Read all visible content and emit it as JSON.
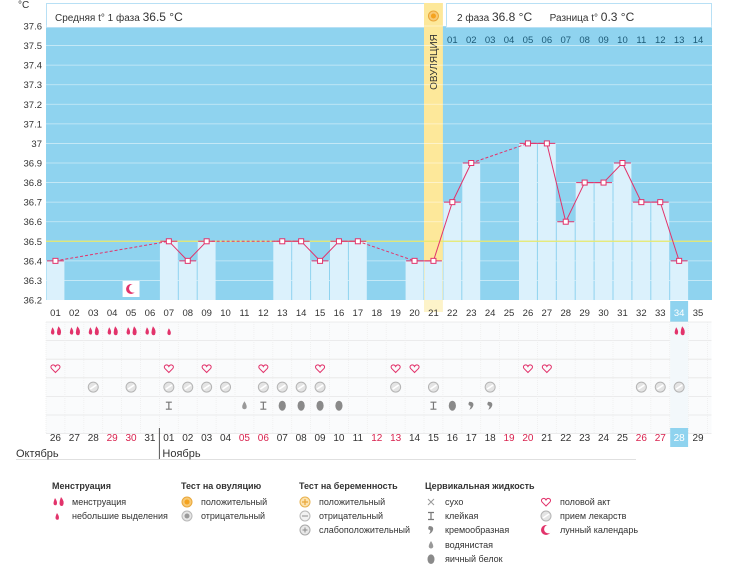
{
  "chart_data": {
    "type": "bar",
    "unit_label": "°C",
    "phase1_label": "Средняя t° 1 фаза",
    "phase1_value": "36.5 °C",
    "phase2_label": "2 фаза",
    "phase2_value": "36.8 °C",
    "diff_label": "Разница t°",
    "diff_value": "0.3 °C",
    "ovulation_label": "ОВУЛЯЦИЯ",
    "ovulation_day": 21,
    "coverline": 36.5,
    "ylim": [
      36.2,
      37.6
    ],
    "y_ticks": [
      "36.2",
      "36.3",
      "36.4",
      "36.5",
      "36.6",
      "36.7",
      "36.8",
      "36.9",
      "37",
      "37.1",
      "37.2",
      "37.3",
      "37.4",
      "37.5",
      "37.6"
    ],
    "cycle_days": [
      "01",
      "02",
      "03",
      "04",
      "05",
      "06",
      "07",
      "08",
      "09",
      "10",
      "11",
      "12",
      "13",
      "14",
      "15",
      "16",
      "17",
      "18",
      "19",
      "20",
      "21",
      "22",
      "23",
      "24",
      "25",
      "26",
      "27",
      "28",
      "29",
      "30",
      "31",
      "32",
      "33",
      "34",
      "35"
    ],
    "luteal_days": [
      "01",
      "02",
      "03",
      "04",
      "05",
      "06",
      "07",
      "08",
      "09",
      "10",
      "11",
      "12",
      "13",
      "14"
    ],
    "temperatures": [
      36.4,
      null,
      null,
      null,
      null,
      null,
      36.5,
      36.4,
      36.5,
      null,
      null,
      null,
      36.5,
      36.5,
      36.4,
      36.5,
      36.5,
      null,
      null,
      36.4,
      36.4,
      36.7,
      36.9,
      null,
      null,
      37.0,
      37.0,
      36.6,
      36.8,
      36.8,
      36.9,
      36.7,
      36.7,
      36.4,
      null
    ],
    "dates": [
      "26",
      "27",
      "28",
      "29",
      "30",
      "31",
      "01",
      "02",
      "03",
      "04",
      "05",
      "06",
      "07",
      "08",
      "09",
      "10",
      "11",
      "12",
      "13",
      "14",
      "15",
      "16",
      "17",
      "18",
      "19",
      "20",
      "21",
      "22",
      "23",
      "24",
      "25",
      "26",
      "27",
      "28",
      "29"
    ],
    "red_dates": [
      3,
      4,
      10,
      11,
      17,
      18,
      24,
      25,
      31,
      32
    ],
    "highlight_day": 34,
    "month_labels": [
      "Октябрь",
      "Ноябрь"
    ],
    "markers": {
      "menstruation": [
        1,
        2,
        3,
        4,
        5,
        6,
        34
      ],
      "light_bleeding": [
        7
      ],
      "sex": [
        1,
        7,
        9,
        12,
        15,
        19,
        20,
        26,
        27
      ],
      "medication": [
        3,
        5,
        7,
        8,
        9,
        10,
        12,
        13,
        14,
        15,
        19,
        21,
        24,
        32,
        33,
        34
      ],
      "fluid_sticky": [
        7,
        12,
        21
      ],
      "fluid_watery": [
        11
      ],
      "fluid_eggwhite": [
        13,
        14,
        15,
        16,
        22
      ],
      "fluid_creamy": [
        23,
        24
      ],
      "moon": [
        5
      ]
    }
  },
  "legend": {
    "menstruation": {
      "title": "Менструация",
      "items": [
        "менструация",
        "небольшие выделения"
      ]
    },
    "ovulation_test": {
      "title": "Тест на овуляцию",
      "items": [
        "положительный",
        "отрицательный"
      ]
    },
    "pregnancy_test": {
      "title": "Тест на беременность",
      "items": [
        "положительный",
        "отрицательный",
        "слабоположительный"
      ]
    },
    "cervical_fluid": {
      "title": "Цервикальная жидкость",
      "items": [
        "сухо",
        "клейкая",
        "кремообразная",
        "водянистая",
        "яичный белок"
      ]
    },
    "other": {
      "items": [
        "половой акт",
        "прием лекарств",
        "лунный календарь"
      ]
    }
  },
  "colors": {
    "sky": "#8fd3ef",
    "bar": "#dbf1fc",
    "bar_border": "#b8e0f5",
    "line": "#e2336b",
    "coverline": "#e8e86a",
    "ovulation": "#fde89a",
    "highlight": "#8fd3ef",
    "red_text": "#d8224e"
  }
}
